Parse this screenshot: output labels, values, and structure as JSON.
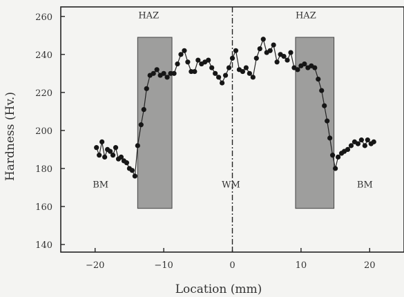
{
  "chart_data": {
    "type": "scatter",
    "xlabel": "Location (mm)",
    "ylabel": "Hardness (Hv.)",
    "xlim": [
      -25,
      25
    ],
    "ylim": [
      136,
      265
    ],
    "x_ticks": [
      -20,
      -10,
      0,
      10,
      20
    ],
    "y_ticks": [
      140,
      160,
      180,
      200,
      220,
      240,
      260
    ],
    "x_tick_labels": [
      "−20",
      "−10",
      "0",
      "10",
      "20"
    ],
    "y_tick_labels": [
      "140",
      "160",
      "180",
      "200",
      "220",
      "240",
      "260"
    ],
    "shaded_regions": [
      {
        "x0": -13.8,
        "x1": -8.8,
        "y0": 159,
        "y1": 249
      },
      {
        "x0": 9.2,
        "x1": 14.8,
        "y0": 159,
        "y1": 249
      }
    ],
    "center_line_x": 0,
    "region_labels": [
      {
        "text": "HAZ",
        "x": -12.2,
        "y": 259
      },
      {
        "text": "HAZ",
        "x": 10.7,
        "y": 259
      },
      {
        "text": "BM",
        "x": -19.2,
        "y": 170
      },
      {
        "text": "WM",
        "x": -0.2,
        "y": 170
      },
      {
        "text": "BM",
        "x": 19.3,
        "y": 170
      }
    ],
    "series": [
      {
        "points": [
          [
            -19.8,
            191
          ],
          [
            -19.4,
            187
          ],
          [
            -19.0,
            194
          ],
          [
            -18.6,
            186
          ],
          [
            -18.2,
            190
          ],
          [
            -17.8,
            189
          ],
          [
            -17.4,
            187
          ],
          [
            -17.0,
            191
          ],
          [
            -16.6,
            185
          ],
          [
            -16.2,
            186
          ],
          [
            -15.8,
            184
          ],
          [
            -15.4,
            183
          ],
          [
            -15.0,
            180
          ],
          [
            -14.6,
            179
          ],
          [
            -14.2,
            176
          ],
          [
            -13.8,
            192
          ],
          [
            -13.3,
            203
          ],
          [
            -12.9,
            211
          ],
          [
            -12.5,
            222
          ],
          [
            -12.0,
            229
          ],
          [
            -11.5,
            230
          ],
          [
            -11.0,
            232
          ],
          [
            -10.5,
            229
          ],
          [
            -10.0,
            230
          ],
          [
            -9.5,
            228
          ],
          [
            -9.0,
            230
          ],
          [
            -8.5,
            230
          ],
          [
            -8.0,
            235
          ],
          [
            -7.5,
            240
          ],
          [
            -7.0,
            242
          ],
          [
            -6.5,
            236
          ],
          [
            -6.0,
            231
          ],
          [
            -5.5,
            231
          ],
          [
            -5.0,
            237
          ],
          [
            -4.5,
            235
          ],
          [
            -4.0,
            236
          ],
          [
            -3.5,
            237
          ],
          [
            -3.0,
            233
          ],
          [
            -2.5,
            230
          ],
          [
            -2.0,
            228
          ],
          [
            -1.5,
            225
          ],
          [
            -1.0,
            229
          ],
          [
            -0.5,
            233
          ],
          [
            0.0,
            238
          ],
          [
            0.5,
            242
          ],
          [
            1.0,
            232
          ],
          [
            1.5,
            231
          ],
          [
            2.0,
            233
          ],
          [
            2.5,
            230
          ],
          [
            3.0,
            228
          ],
          [
            3.5,
            238
          ],
          [
            4.0,
            243
          ],
          [
            4.5,
            248
          ],
          [
            5.0,
            241
          ],
          [
            5.5,
            242
          ],
          [
            6.0,
            245
          ],
          [
            6.5,
            236
          ],
          [
            7.0,
            240
          ],
          [
            7.5,
            239
          ],
          [
            8.0,
            237
          ],
          [
            8.5,
            241
          ],
          [
            9.0,
            233
          ],
          [
            9.5,
            232
          ],
          [
            10.0,
            234
          ],
          [
            10.5,
            235
          ],
          [
            11.0,
            233
          ],
          [
            11.5,
            234
          ],
          [
            12.0,
            233
          ],
          [
            12.5,
            227
          ],
          [
            13.0,
            221
          ],
          [
            13.4,
            213
          ],
          [
            13.8,
            205
          ],
          [
            14.2,
            196
          ],
          [
            14.6,
            187
          ],
          [
            15.0,
            180
          ],
          [
            15.4,
            186
          ],
          [
            15.9,
            188
          ],
          [
            16.3,
            189
          ],
          [
            16.8,
            190
          ],
          [
            17.3,
            192
          ],
          [
            17.8,
            194
          ],
          [
            18.3,
            193
          ],
          [
            18.8,
            195
          ],
          [
            19.3,
            192
          ],
          [
            19.7,
            195
          ],
          [
            20.2,
            193
          ],
          [
            20.6,
            194
          ]
        ]
      }
    ]
  }
}
